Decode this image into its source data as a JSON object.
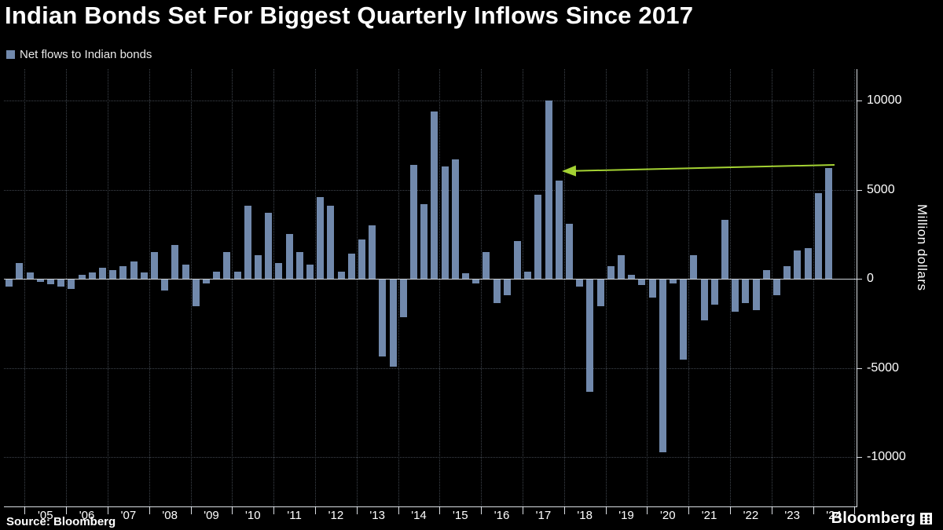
{
  "chart_data": {
    "type": "bar",
    "title": "Indian Bonds Set For Biggest Quarterly Inflows Since 2017",
    "ylabel": "Million dollars",
    "ylim": [
      -12800,
      11800
    ],
    "grid": true,
    "legend_position": "top-left",
    "yticks": [
      10000,
      5000,
      0,
      -5000,
      -10000
    ],
    "ytick_labels": [
      "10000",
      "5000",
      "0",
      "-5000",
      "-10000"
    ],
    "x_labels": [
      "'05",
      "'06",
      "'07",
      "'08",
      "'09",
      "'10",
      "'11",
      "'12",
      "'13",
      "'14",
      "'15",
      "'16",
      "'17",
      "'18",
      "'19",
      "'20",
      "'21",
      "'22",
      "'23",
      "'24"
    ],
    "x": [
      "2004 Q3",
      "2004 Q4",
      "2005 Q1",
      "2005 Q2",
      "2005 Q3",
      "2005 Q4",
      "2006 Q1",
      "2006 Q2",
      "2006 Q3",
      "2006 Q4",
      "2007 Q1",
      "2007 Q2",
      "2007 Q3",
      "2007 Q4",
      "2008 Q1",
      "2008 Q2",
      "2008 Q3",
      "2008 Q4",
      "2009 Q1",
      "2009 Q2",
      "2009 Q3",
      "2009 Q4",
      "2010 Q1",
      "2010 Q2",
      "2010 Q3",
      "2010 Q4",
      "2011 Q1",
      "2011 Q2",
      "2011 Q3",
      "2011 Q4",
      "2012 Q1",
      "2012 Q2",
      "2012 Q3",
      "2012 Q4",
      "2013 Q1",
      "2013 Q2",
      "2013 Q3",
      "2013 Q4",
      "2014 Q1",
      "2014 Q2",
      "2014 Q3",
      "2014 Q4",
      "2015 Q1",
      "2015 Q2",
      "2015 Q3",
      "2015 Q4",
      "2016 Q1",
      "2016 Q2",
      "2016 Q3",
      "2016 Q4",
      "2017 Q1",
      "2017 Q2",
      "2017 Q3",
      "2017 Q4",
      "2018 Q1",
      "2018 Q2",
      "2018 Q3",
      "2018 Q4",
      "2019 Q1",
      "2019 Q2",
      "2019 Q3",
      "2019 Q4",
      "2020 Q1",
      "2020 Q2",
      "2020 Q3",
      "2020 Q4",
      "2021 Q1",
      "2021 Q2",
      "2021 Q3",
      "2021 Q4",
      "2022 Q1",
      "2022 Q2",
      "2022 Q3",
      "2022 Q4",
      "2023 Q1",
      "2023 Q2",
      "2023 Q3",
      "2023 Q4",
      "2024 Q1",
      "2024 Q2"
    ],
    "series": [
      {
        "name": "Net flows to Indian bonds",
        "values": [
          -400,
          900,
          350,
          -150,
          -250,
          -400,
          -550,
          200,
          350,
          600,
          500,
          700,
          950,
          350,
          1500,
          -600,
          1900,
          800,
          -1500,
          -200,
          400,
          1500,
          400,
          4100,
          1300,
          3700,
          900,
          2500,
          1500,
          800,
          4600,
          4100,
          400,
          1400,
          2200,
          3000,
          -4300,
          -4900,
          -2100,
          6400,
          4200,
          9400,
          6300,
          6700,
          300,
          -200,
          1500,
          -1300,
          -900,
          2100,
          400,
          4700,
          10000,
          5500,
          3100,
          -400,
          -6300,
          -1500,
          700,
          1300,
          200,
          -300,
          -1000,
          -9700,
          -200,
          -4500,
          1300,
          -2300,
          -1400,
          3300,
          -1800,
          -1300,
          -1700,
          500,
          -900,
          700,
          1600,
          1700,
          4800,
          6200
        ]
      }
    ],
    "annotation": {
      "shape": "arrow",
      "color": "#a4d233",
      "points_from": "2024 Q2",
      "points_to": "2017"
    },
    "colors": {
      "background": "#000000",
      "bar": "#7189ac",
      "arrow": "#a4d233",
      "grid": "#3f454d",
      "zero_line": "#ccd2d9",
      "axis": "#d9dde2",
      "text": "#ffffff"
    }
  },
  "footer": {
    "source": "Source: Bloomberg",
    "brand": "Bloomberg"
  }
}
